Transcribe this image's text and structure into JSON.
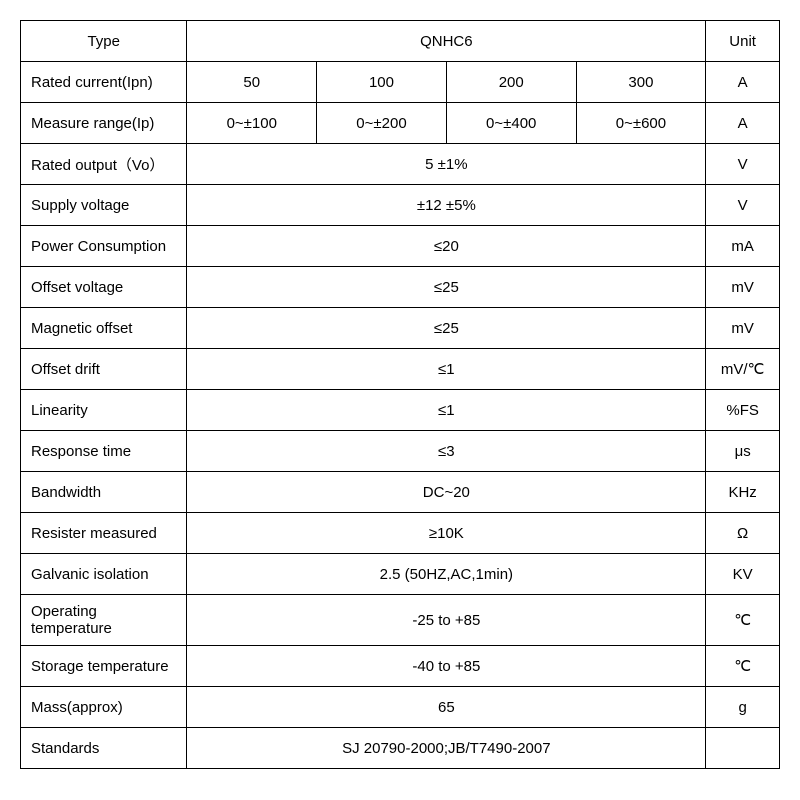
{
  "table": {
    "border_color": "#000000",
    "background_color": "#ffffff",
    "text_color": "#000000",
    "font_size": 15,
    "header": {
      "type_label": "Type",
      "model": "QNHC6",
      "unit_label": "Unit"
    },
    "row_rated_current": {
      "label": "Rated current(Ipn)",
      "v1": "50",
      "v2": "100",
      "v3": "200",
      "v4": "300",
      "unit": "A"
    },
    "row_measure_range": {
      "label": "Measure range(Ip)",
      "v1": "0~±100",
      "v2": "0~±200",
      "v3": "0~±400",
      "v4": "0~±600",
      "unit": "A"
    },
    "row_rated_output": {
      "label": "Rated output（Vo）",
      "value": "5 ±1%",
      "unit": "V"
    },
    "row_supply_voltage": {
      "label": "Supply voltage",
      "value": "±12 ±5%",
      "unit": "V"
    },
    "row_power_consumption": {
      "label": "Power Consumption",
      "value": "≤20",
      "unit": "mA"
    },
    "row_offset_voltage": {
      "label": "Offset voltage",
      "value": "≤25",
      "unit": "mV"
    },
    "row_magnetic_offset": {
      "label": "Magnetic offset",
      "value": "≤25",
      "unit": "mV"
    },
    "row_offset_drift": {
      "label": "Offset drift",
      "value": "≤1",
      "unit": "mV/℃"
    },
    "row_linearity": {
      "label": "Linearity",
      "value": "≤1",
      "unit": "%FS"
    },
    "row_response_time": {
      "label": "Response time",
      "value": "≤3",
      "unit": "μs"
    },
    "row_bandwidth": {
      "label": "Bandwidth",
      "value": "DC~20",
      "unit": "KHz"
    },
    "row_resister_measured": {
      "label": "Resister measured",
      "value": "≥10K",
      "unit": "Ω"
    },
    "row_galvanic_isolation": {
      "label": "Galvanic isolation",
      "value": "2.5 (50HZ,AC,1min)",
      "unit": "KV"
    },
    "row_operating_temp": {
      "label": "Operating temperature",
      "value": "-25 to +85",
      "unit": "℃"
    },
    "row_storage_temp": {
      "label": "Storage temperature",
      "value": "-40 to +85",
      "unit": "℃"
    },
    "row_mass": {
      "label": "Mass(approx)",
      "value": "65",
      "unit": "g"
    },
    "row_standards": {
      "label": "Standards",
      "value": "SJ 20790-2000;JB/T7490-2007",
      "unit": ""
    }
  }
}
